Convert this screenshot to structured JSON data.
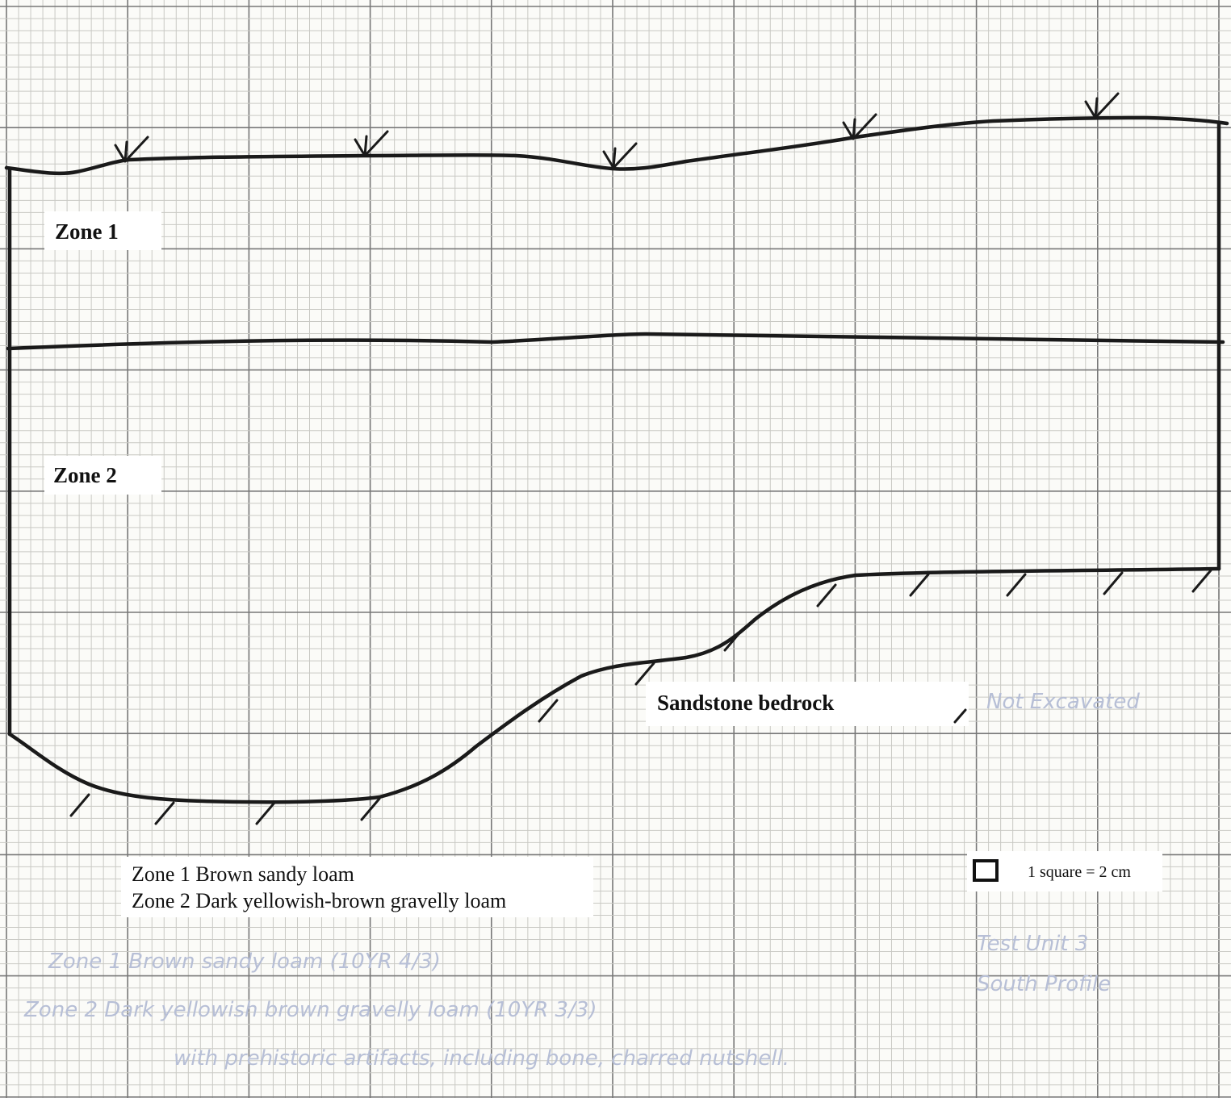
{
  "zones": [
    {
      "label": "Zone 1"
    },
    {
      "label": "Zone 2"
    }
  ],
  "bedrock": {
    "label": "Sandstone bedrock"
  },
  "not_excavated": "Not Excavated",
  "legend": [
    "Zone 1  Brown sandy loam",
    "Zone 2  Dark yellowish-brown gravelly loam"
  ],
  "scale": "1 square = 2 cm",
  "notes": {
    "unit": "Test Unit 3",
    "profile": "South Profile",
    "lines": [
      "Zone 1  Brown sandy loam (10YR 4/3)",
      "Zone 2  Dark yellowish brown gravelly loam (10YR 3/3)",
      "with prehistoric artifacts, including bone, charred nutshell."
    ]
  }
}
